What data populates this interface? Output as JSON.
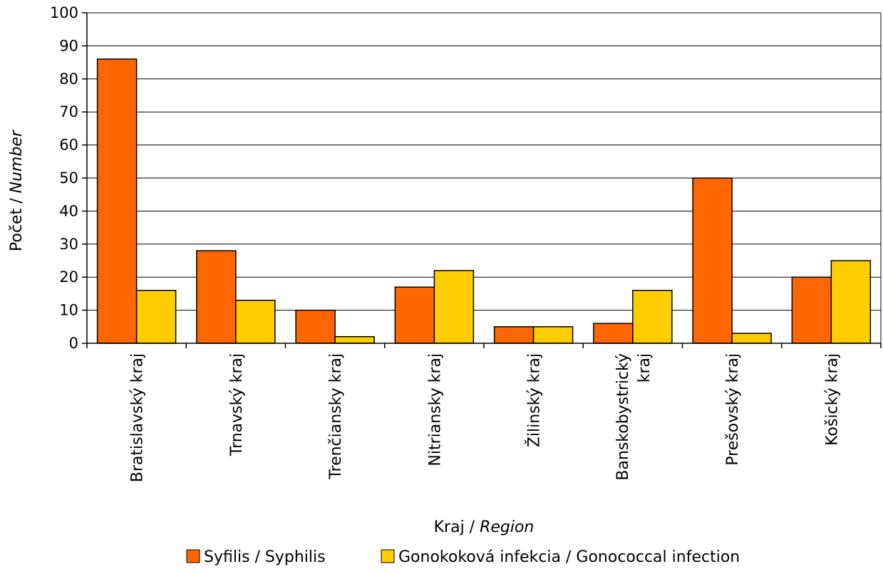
{
  "chart_data": {
    "type": "bar",
    "categories": [
      [
        "Bratislavský kraj"
      ],
      [
        "Trnavský kraj"
      ],
      [
        "Trenčiansky kraj"
      ],
      [
        "Nitriansky kraj"
      ],
      [
        "Žilinský kraj"
      ],
      [
        "Banskobystrický",
        "kraj"
      ],
      [
        "Prešovský kraj"
      ],
      [
        "Košický kraj"
      ]
    ],
    "series": [
      {
        "name": "Syfilis / Syphilis",
        "color": "#FF6600",
        "values": [
          86,
          28,
          10,
          17,
          5,
          6,
          50,
          20
        ]
      },
      {
        "name": "Gonokoková infekcia / Gonococcal infection",
        "color": "#FFCC00",
        "values": [
          16,
          13,
          2,
          22,
          5,
          16,
          3,
          25
        ]
      }
    ],
    "xlabel": {
      "plain": "Kraj / ",
      "italic": "Region"
    },
    "ylabel": {
      "plain": "Počet / ",
      "italic": "Number"
    },
    "ylim": [
      0,
      100
    ],
    "yticks": [
      "0",
      "10",
      "20",
      "30",
      "40",
      "50",
      "60",
      "70",
      "80",
      "90",
      "100"
    ],
    "grid": true,
    "legend_position": "bottom"
  }
}
